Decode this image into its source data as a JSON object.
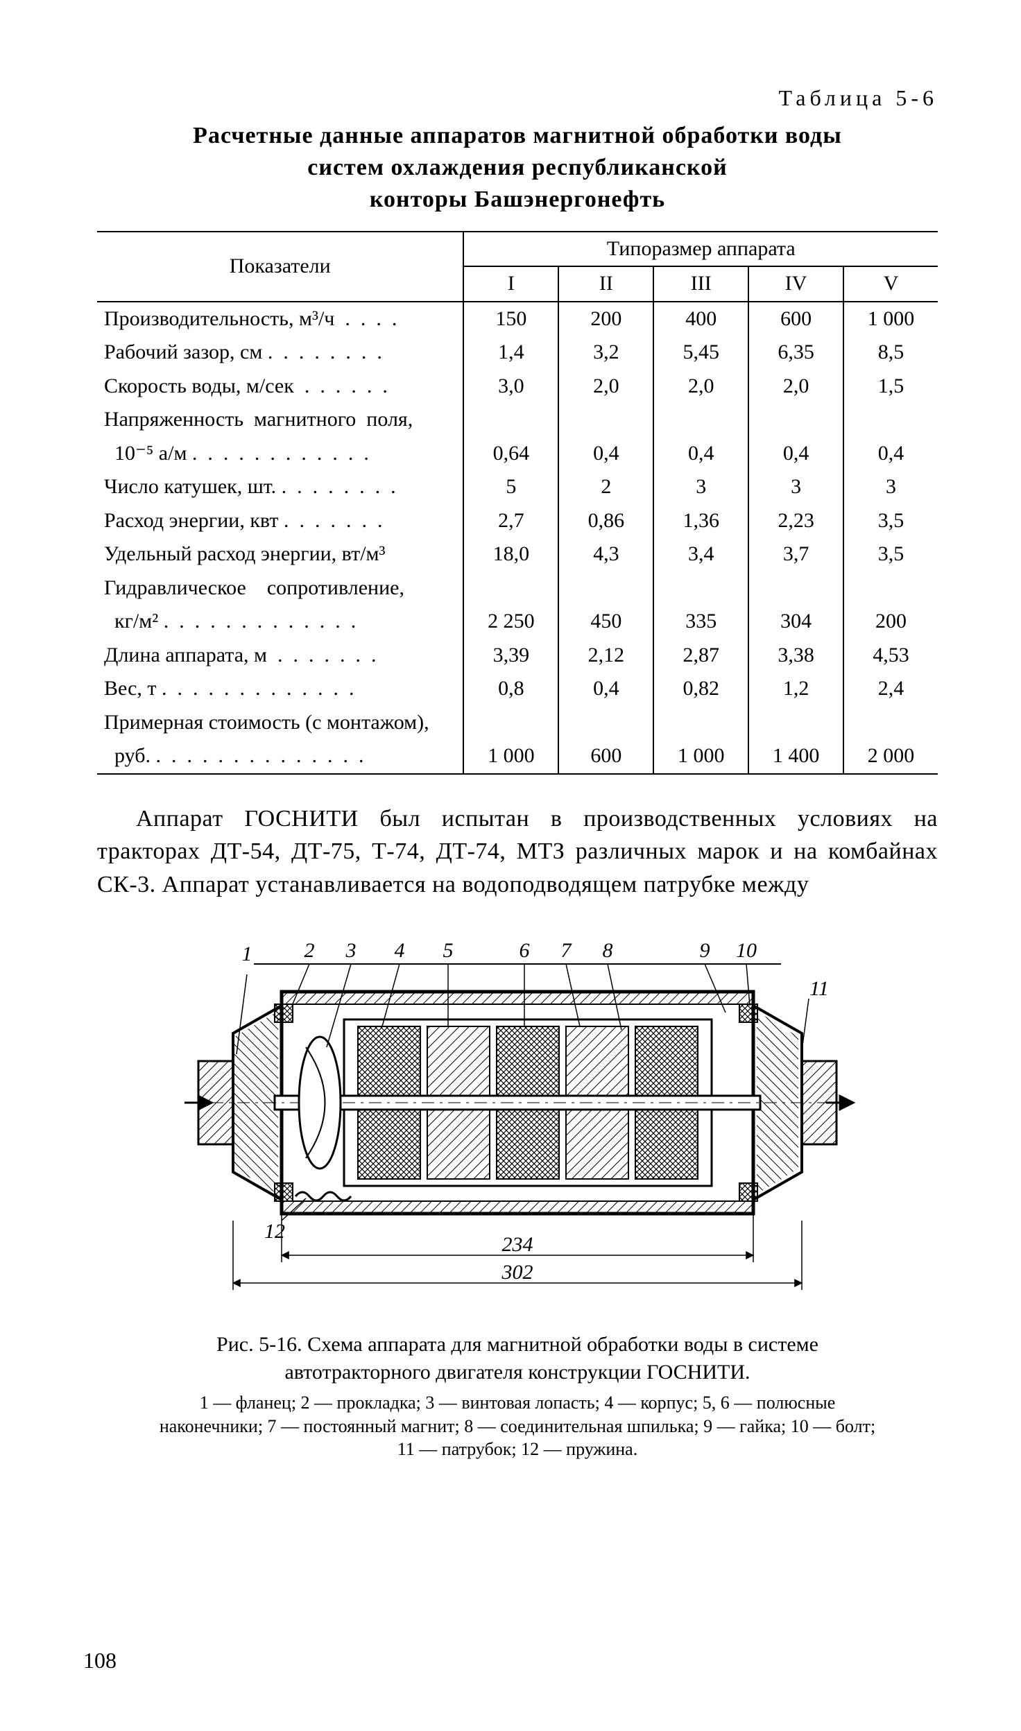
{
  "table_label": "Таблица  5-6",
  "title_lines": [
    "Расчетные  данные  аппаратов магнитной обработки воды",
    "систем охлаждения республиканской",
    "конторы Башэнергонефть"
  ],
  "table": {
    "indicator_header": "Показатели",
    "group_header": "Типоразмер аппарата",
    "columns": [
      "I",
      "II",
      "III",
      "IV",
      "V"
    ],
    "rows": [
      {
        "label": "Производительность, м³/ч  .  .  .  .",
        "values": [
          "150",
          "200",
          "400",
          "600",
          "1 000"
        ]
      },
      {
        "label": "Рабочий зазор, см .  .  .  .  .  .  .  .",
        "values": [
          "1,4",
          "3,2",
          "5,45",
          "6,35",
          "8,5"
        ]
      },
      {
        "label": "Скорость воды, м/сек  .  .  .  .  .  .",
        "values": [
          "3,0",
          "2,0",
          "2,0",
          "2,0",
          "1,5"
        ]
      },
      {
        "label": "Напряженность  магнитного  поля,",
        "values": [
          "",
          "",
          "",
          "",
          ""
        ]
      },
      {
        "label": "  10⁻⁵ а/м .  .  .  .  .  .  .  .  .  .  .  .",
        "values": [
          "0,64",
          "0,4",
          "0,4",
          "0,4",
          "0,4"
        ]
      },
      {
        "label": "Число катушек, шт. .  .  .  .  .  .  .  .",
        "values": [
          "5",
          "2",
          "3",
          "3",
          "3"
        ]
      },
      {
        "label": "Расход энергии, квт .  .  .  .  .  .  .",
        "values": [
          "2,7",
          "0,86",
          "1,36",
          "2,23",
          "3,5"
        ]
      },
      {
        "label": "Удельный расход энергии, вт/м³",
        "values": [
          "18,0",
          "4,3",
          "3,4",
          "3,7",
          "3,5"
        ]
      },
      {
        "label": "Гидравлическое    сопротивление,",
        "values": [
          "",
          "",
          "",
          "",
          ""
        ]
      },
      {
        "label": "  кг/м² .  .  .  .  .  .  .  .  .  .  .  .  .",
        "values": [
          "2 250",
          "450",
          "335",
          "304",
          "200"
        ]
      },
      {
        "label": "Длина аппарата, м  .  .  .  .  .  .  .",
        "values": [
          "3,39",
          "2,12",
          "2,87",
          "3,38",
          "4,53"
        ]
      },
      {
        "label": "Вес, т .  .  .  .  .  .  .  .  .  .  .  .  .",
        "values": [
          "0,8",
          "0,4",
          "0,82",
          "1,2",
          "2,4"
        ]
      },
      {
        "label": "Примерная стоимость (с монтажом),",
        "values": [
          "",
          "",
          "",
          "",
          ""
        ]
      },
      {
        "label": "  руб. .  .  .  .  .  .  .  .  .  .  .  .  .  .",
        "values": [
          "1 000",
          "600",
          "1 000",
          "1 400",
          "2 000"
        ]
      }
    ]
  },
  "paragraph": "Аппарат ГОСНИТИ был испытан в производственных условиях на тракторах ДТ-54, ДТ-75, Т-74, ДТ-74, МТЗ различных марок и на комбайнах СК-3. Аппарат устанавливается на водоподводящем патрубке между",
  "figure": {
    "callouts": [
      "1",
      "2",
      "3",
      "4",
      "5",
      "6",
      "7",
      "8",
      "9",
      "10",
      "11",
      "12"
    ],
    "dim_inner": "234",
    "dim_outer": "302",
    "caption": "Рис. 5-16. Схема аппарата для магнитной обработки воды в системе автотракторного двигателя конструкции ГОСНИТИ.",
    "legend": "1 — фланец;  2 — прокладка;  3 — винтовая  лопасть;  4 — корпус;  5, 6 — полюсные  наконечники;  7 — постоянный  магнит;  8 — соединительная  шпилька;  9 — гайка;  10 — болт;  11 — патрубок;  12 — пружина."
  },
  "page_number": "108"
}
